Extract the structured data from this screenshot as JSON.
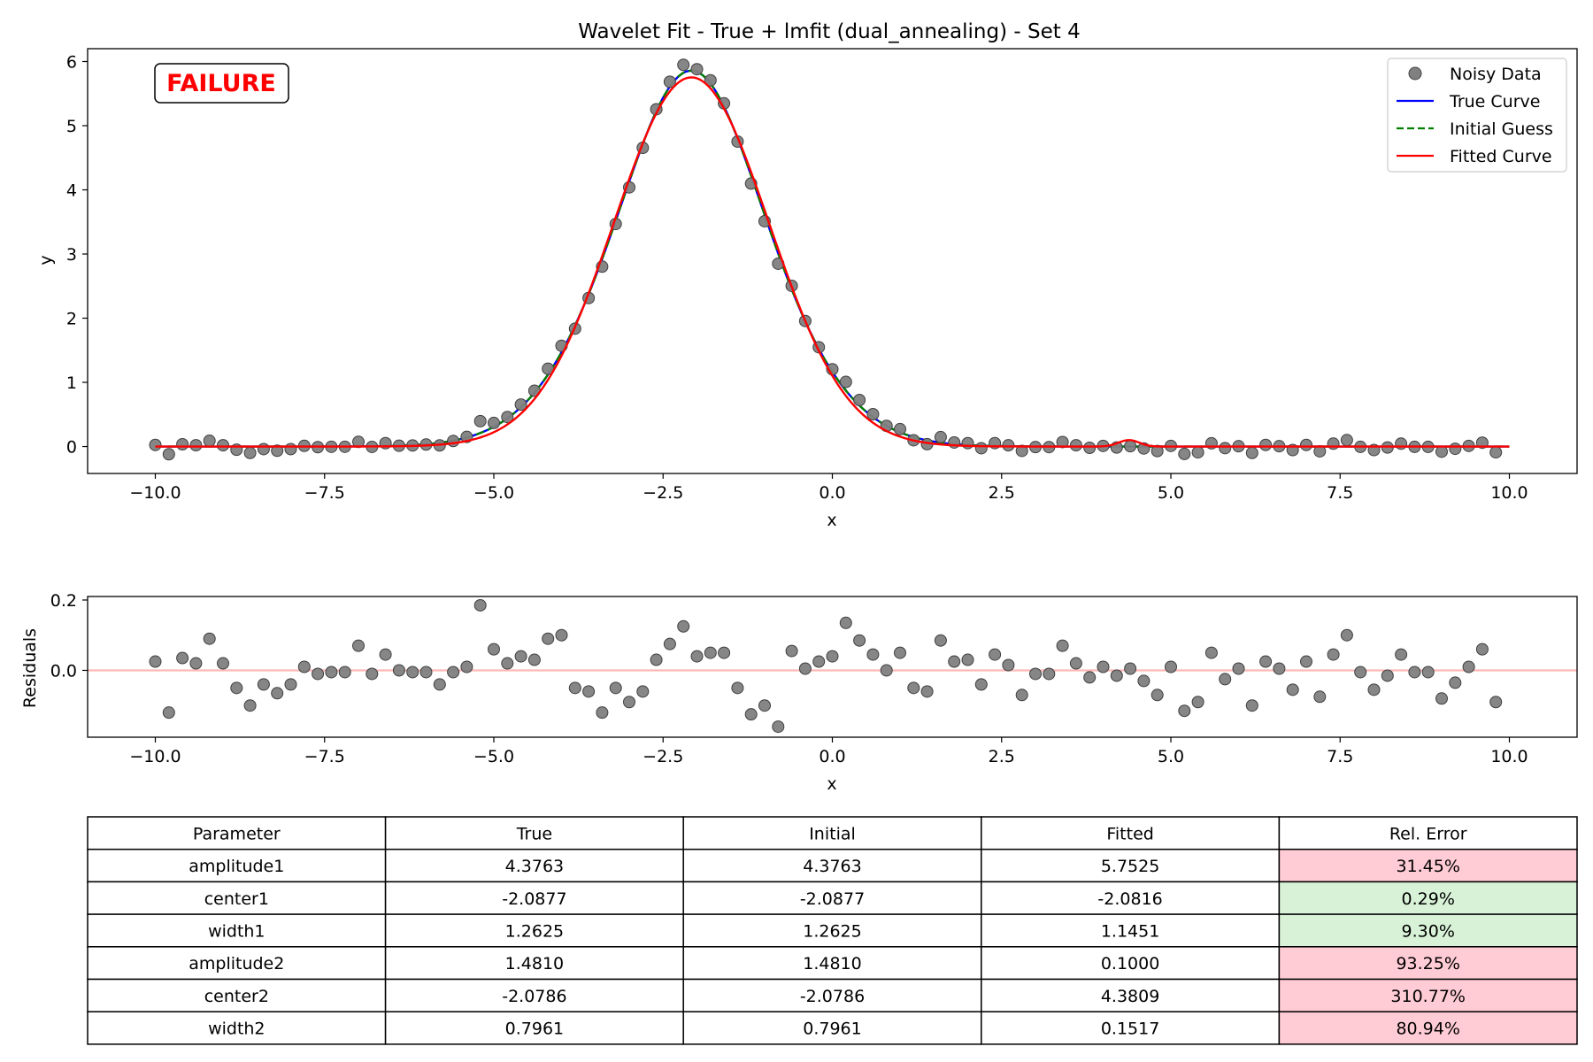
{
  "chart_data": [
    {
      "type": "scatter",
      "title": "Wavelet Fit - True + lmfit (dual_annealing) - Set 4",
      "xlabel": "x",
      "ylabel": "y",
      "xlim": [
        -11.0,
        11.0
      ],
      "ylim": [
        -0.42,
        6.2
      ],
      "xticks": [
        -10,
        -7.5,
        -5,
        -2.5,
        0,
        2.5,
        5,
        7.5,
        10
      ],
      "xtick_labels": [
        "−10.0",
        "−7.5",
        "−5.0",
        "−2.5",
        "0.0",
        "2.5",
        "5.0",
        "7.5",
        "10.0"
      ],
      "yticks": [
        0,
        1,
        2,
        3,
        4,
        5,
        6
      ],
      "ytick_labels": [
        "0",
        "1",
        "2",
        "3",
        "4",
        "5",
        "6"
      ],
      "grid": false,
      "legend_position": "top-right",
      "annotation": {
        "text": "FAILURE",
        "position": "top-left",
        "color": "#ff0000"
      },
      "series": [
        {
          "name": "Noisy Data",
          "kind": "scatter",
          "color": "#808080"
        },
        {
          "name": "True Curve",
          "kind": "line",
          "color": "#0000ff",
          "amplitude1": 4.3763,
          "center1": -2.0877,
          "width1": 1.2625,
          "amplitude2": 1.481,
          "center2": -2.0786,
          "width2": 0.7961
        },
        {
          "name": "Initial Guess",
          "kind": "line",
          "dash": "dashed",
          "color": "#008000",
          "amplitude1": 4.3763,
          "center1": -2.0877,
          "width1": 1.2625,
          "amplitude2": 1.481,
          "center2": -2.0786,
          "width2": 0.7961
        },
        {
          "name": "Fitted Curve",
          "kind": "line",
          "color": "#ff0000",
          "amplitude1": 5.7525,
          "center1": -2.0816,
          "width1": 1.1451,
          "amplitude2": 0.1,
          "center2": 4.3809,
          "width2": 0.1517
        }
      ],
      "x_start": -10.0,
      "x_step": 0.2
    },
    {
      "type": "scatter",
      "title": "",
      "xlabel": "x",
      "ylabel": "Residuals",
      "xlim": [
        -11.0,
        11.0
      ],
      "ylim": [
        -0.19,
        0.21
      ],
      "xticks": [
        -10,
        -7.5,
        -5,
        -2.5,
        0,
        2.5,
        5,
        7.5,
        10
      ],
      "xtick_labels": [
        "−10.0",
        "−7.5",
        "−5.0",
        "−2.5",
        "0.0",
        "2.5",
        "5.0",
        "7.5",
        "10.0"
      ],
      "yticks": [
        0.0,
        0.2
      ],
      "ytick_labels": [
        "0.0",
        "0.2"
      ],
      "zero_line_color": "#ffb6b6",
      "point_color": "#808080",
      "x_start": -10.0,
      "x_step": 0.2,
      "residuals": [
        0.025,
        -0.12,
        0.035,
        0.02,
        0.09,
        0.02,
        -0.05,
        -0.1,
        -0.04,
        -0.065,
        -0.04,
        0.01,
        -0.01,
        -0.005,
        -0.005,
        0.07,
        -0.01,
        0.045,
        0.0,
        -0.005,
        -0.005,
        -0.04,
        -0.005,
        0.01,
        0.185,
        0.06,
        0.02,
        0.04,
        0.03,
        0.09,
        0.1,
        -0.05,
        -0.06,
        -0.12,
        -0.05,
        -0.09,
        -0.06,
        0.03,
        0.075,
        0.125,
        0.04,
        0.05,
        0.05,
        -0.05,
        -0.125,
        -0.1,
        -0.16,
        0.055,
        0.005,
        0.025,
        0.04,
        0.135,
        0.085,
        0.045,
        0.0,
        0.05,
        -0.05,
        -0.06,
        0.085,
        0.025,
        0.03,
        -0.04,
        0.045,
        0.015,
        -0.07,
        -0.01,
        -0.01,
        0.07,
        0.02,
        -0.02,
        0.01,
        -0.015,
        0.005,
        -0.03,
        -0.07,
        0.01,
        -0.115,
        -0.09,
        0.05,
        -0.025,
        0.005,
        -0.1,
        0.025,
        0.005,
        -0.055,
        0.025,
        -0.075,
        0.045,
        0.1,
        -0.005,
        -0.055,
        -0.015,
        0.045,
        -0.005,
        -0.005,
        -0.08,
        -0.035,
        0.01,
        0.06,
        -0.09
      ]
    },
    {
      "type": "table",
      "columns": [
        "Parameter",
        "True",
        "Initial",
        "Fitted",
        "Rel. Error"
      ],
      "rows": [
        [
          "amplitude1",
          "4.3763",
          "4.3763",
          "5.7525",
          "31.45%"
        ],
        [
          "center1",
          "-2.0877",
          "-2.0877",
          "-2.0816",
          "0.29%"
        ],
        [
          "width1",
          "1.2625",
          "1.2625",
          "1.1451",
          "9.30%"
        ],
        [
          "amplitude2",
          "1.4810",
          "1.4810",
          "0.1000",
          "93.25%"
        ],
        [
          "center2",
          "-2.0786",
          "-2.0786",
          "4.3809",
          "310.77%"
        ],
        [
          "width2",
          "0.7961",
          "0.7961",
          "0.1517",
          "80.94%"
        ]
      ],
      "error_colors": [
        "#ffccd5",
        "#d8f2d8",
        "#d8f2d8",
        "#ffccd5",
        "#ffccd5",
        "#ffccd5"
      ]
    }
  ]
}
